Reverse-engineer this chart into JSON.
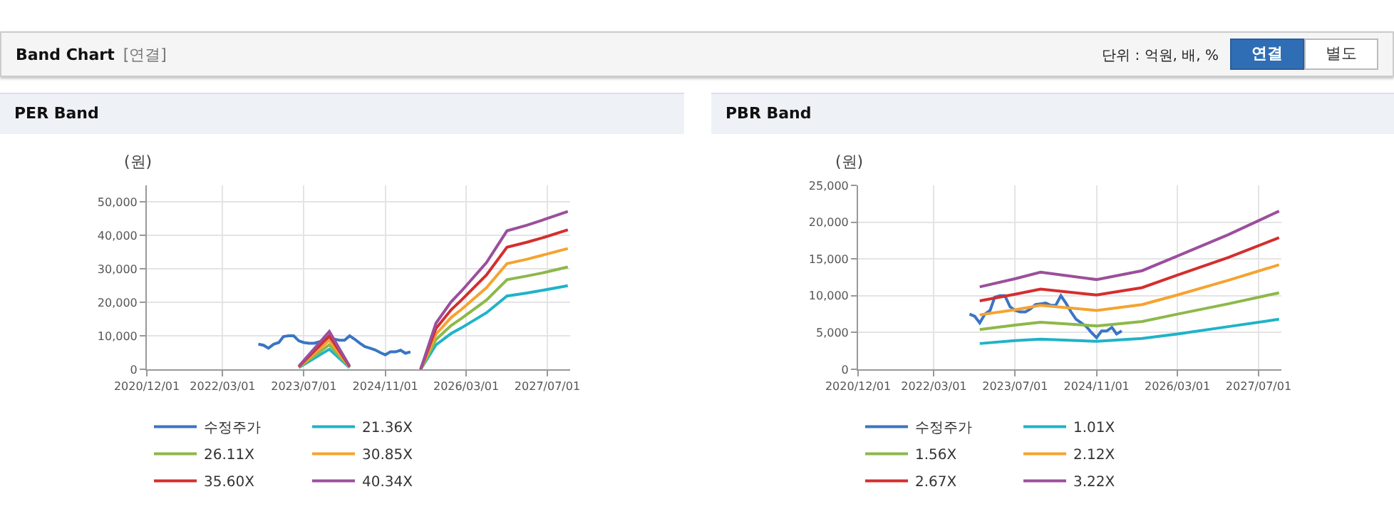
{
  "chart_data": [
    {
      "type": "other",
      "title": "Band Chart",
      "subtitle": "[연결]",
      "annotations": [
        "단위 : 억원, 배, %",
        "연결",
        "별도"
      ]
    },
    {
      "type": "line",
      "title": "PER Band",
      "ylabel": "(원)",
      "grid": true,
      "legend": "bottom",
      "ylim": [
        0,
        55000
      ],
      "yticks": [
        0,
        {
          "value": 10000,
          "label": "10,000"
        },
        {
          "value": 20000,
          "label": "20,000"
        },
        {
          "value": 30000,
          "label": "30,000"
        },
        {
          "value": 40000,
          "label": "40,000"
        },
        {
          "value": 50000,
          "label": "50,000"
        }
      ],
      "xlim": [
        "2020-12-01",
        "2027-11-15"
      ],
      "xticks": [
        {
          "value": "2020-12-01",
          "label": "2020/12/01"
        },
        {
          "value": "2022-03-01",
          "label": "2022/03/01"
        },
        {
          "value": "2023-07-01",
          "label": "2023/07/01"
        },
        {
          "value": "2024-11-01",
          "label": "2024/11/01"
        },
        {
          "value": "2026-03-01",
          "label": "2026/03/01"
        },
        {
          "value": "2027-07-01",
          "label": "2027/07/01"
        }
      ],
      "series": [
        {
          "name": "수정주가",
          "color": "#3a75c4",
          "x": [
            "2022-10",
            "2022-11",
            "2022-12",
            "2023-01",
            "2023-02",
            "2023-03",
            "2023-04",
            "2023-05",
            "2023-06",
            "2023-07",
            "2023-08",
            "2023-09",
            "2023-10",
            "2023-11",
            "2023-12",
            "2024-01",
            "2024-02",
            "2024-03",
            "2024-04",
            "2024-05",
            "2024-06",
            "2024-07",
            "2024-08",
            "2024-09",
            "2024-10",
            "2024-11",
            "2024-12",
            "2025-01",
            "2025-02",
            "2025-03",
            "2025-04"
          ],
          "values": [
            7500,
            7200,
            6300,
            7500,
            8000,
            9800,
            10000,
            10000,
            8500,
            8000,
            7800,
            7800,
            8200,
            8800,
            8900,
            9000,
            8700,
            8700,
            10000,
            9000,
            7800,
            6800,
            6300,
            5800,
            5000,
            4300,
            5200,
            5200,
            5700,
            4800,
            5200
          ]
        },
        {
          "name": "21.36X",
          "color": "#1fb3c8",
          "x": [
            "2023-06",
            "2023-12",
            "2024-04",
            "2024-12",
            "2025-06",
            "2025-09",
            "2025-12",
            "2026-02",
            "2026-07",
            "2026-11",
            "2027-03",
            "2027-06",
            "2027-11"
          ],
          "values": [
            500,
            6000,
            500,
            null,
            0,
            7300,
            10700,
            12400,
            16900,
            21900,
            22800,
            23600,
            25000
          ]
        },
        {
          "name": "26.11X",
          "color": "#8db84a",
          "x": [
            "2023-06",
            "2023-12",
            "2024-04",
            "2024-12",
            "2025-06",
            "2025-09",
            "2025-12",
            "2026-02",
            "2026-07",
            "2026-11",
            "2027-03",
            "2027-06",
            "2027-11"
          ],
          "values": [
            600,
            7300,
            600,
            null,
            0,
            8900,
            13100,
            15200,
            20700,
            26800,
            27900,
            28800,
            30600
          ]
        },
        {
          "name": "30.85X",
          "color": "#f5a330",
          "x": [
            "2023-06",
            "2023-12",
            "2024-04",
            "2024-12",
            "2025-06",
            "2025-09",
            "2025-12",
            "2026-02",
            "2026-07",
            "2026-11",
            "2027-03",
            "2027-06",
            "2027-11"
          ],
          "values": [
            700,
            8700,
            700,
            null,
            0,
            10500,
            15500,
            17900,
            24400,
            31600,
            32900,
            34100,
            36100
          ]
        },
        {
          "name": "35.60X",
          "color": "#d42e2e",
          "x": [
            "2023-06",
            "2023-12",
            "2024-04",
            "2024-12",
            "2025-06",
            "2025-09",
            "2025-12",
            "2026-02",
            "2026-07",
            "2026-11",
            "2027-03",
            "2027-06",
            "2027-11"
          ],
          "values": [
            800,
            10000,
            800,
            null,
            0,
            12200,
            17800,
            20700,
            28200,
            36500,
            38000,
            39300,
            41700
          ]
        },
        {
          "name": "40.34X",
          "color": "#9b4f9b",
          "x": [
            "2023-06",
            "2023-12",
            "2024-04",
            "2024-12",
            "2025-06",
            "2025-09",
            "2025-12",
            "2026-02",
            "2026-07",
            "2026-11",
            "2027-03",
            "2027-06",
            "2027-11"
          ],
          "values": [
            900,
            11300,
            900,
            null,
            0,
            13800,
            20200,
            23400,
            31900,
            41400,
            43100,
            44600,
            47200
          ]
        }
      ]
    },
    {
      "type": "line",
      "title": "PBR Band",
      "ylabel": "(원)",
      "grid": true,
      "legend": "bottom",
      "ylim": [
        0,
        25000
      ],
      "yticks": [
        0,
        {
          "value": 5000,
          "label": "5,000"
        },
        {
          "value": 10000,
          "label": "10,000"
        },
        {
          "value": 15000,
          "label": "15,000"
        },
        {
          "value": 20000,
          "label": "20,000"
        },
        {
          "value": 25000,
          "label": "25,000"
        }
      ],
      "xlim": [
        "2020-12-01",
        "2027-11-15"
      ],
      "xticks": [
        {
          "value": "2020-12-01",
          "label": "2020/12/01"
        },
        {
          "value": "2022-03-01",
          "label": "2022/03/01"
        },
        {
          "value": "2023-07-01",
          "label": "2023/07/01"
        },
        {
          "value": "2024-11-01",
          "label": "2024/11/01"
        },
        {
          "value": "2026-03-01",
          "label": "2026/03/01"
        },
        {
          "value": "2027-07-01",
          "label": "2027/07/01"
        }
      ],
      "series": [
        {
          "name": "수정주가",
          "color": "#3a75c4",
          "x": [
            "2022-10",
            "2022-11",
            "2022-12",
            "2023-01",
            "2023-02",
            "2023-03",
            "2023-04",
            "2023-05",
            "2023-06",
            "2023-07",
            "2023-08",
            "2023-09",
            "2023-10",
            "2023-11",
            "2023-12",
            "2024-01",
            "2024-02",
            "2024-03",
            "2024-04",
            "2024-05",
            "2024-06",
            "2024-07",
            "2024-08",
            "2024-09",
            "2024-10",
            "2024-11",
            "2024-12",
            "2025-01",
            "2025-02",
            "2025-03",
            "2025-04"
          ],
          "values": [
            7500,
            7200,
            6300,
            7500,
            8000,
            9800,
            10000,
            10000,
            8500,
            8000,
            7800,
            7800,
            8200,
            8800,
            8900,
            9000,
            8700,
            8700,
            10000,
            9000,
            7800,
            6800,
            6300,
            5800,
            5000,
            4300,
            5200,
            5200,
            5700,
            4800,
            5200
          ]
        },
        {
          "name": "1.01X",
          "color": "#1fb3c8",
          "x": [
            "2022-12",
            "2023-07",
            "2023-12",
            "2024-11",
            "2025-08",
            "2026-03",
            "2027-01",
            "2027-11"
          ],
          "values": [
            3500,
            3900,
            4100,
            3800,
            4200,
            4800,
            5800,
            6800
          ]
        },
        {
          "name": "1.56X",
          "color": "#8db84a",
          "x": [
            "2022-12",
            "2023-07",
            "2023-12",
            "2024-11",
            "2025-08",
            "2026-03",
            "2027-01",
            "2027-11"
          ],
          "values": [
            5400,
            6000,
            6400,
            5900,
            6500,
            7500,
            8900,
            10400
          ]
        },
        {
          "name": "2.12X",
          "color": "#f5a330",
          "x": [
            "2022-12",
            "2023-07",
            "2023-12",
            "2024-11",
            "2025-08",
            "2026-03",
            "2027-01",
            "2027-11"
          ],
          "values": [
            7400,
            8100,
            8700,
            8000,
            8800,
            10100,
            12100,
            14200
          ]
        },
        {
          "name": "2.67X",
          "color": "#d42e2e",
          "x": [
            "2022-12",
            "2023-07",
            "2023-12",
            "2024-11",
            "2025-08",
            "2026-03",
            "2027-01",
            "2027-11"
          ],
          "values": [
            9300,
            10200,
            10900,
            10100,
            11100,
            12800,
            15200,
            17900
          ]
        },
        {
          "name": "3.22X",
          "color": "#9b4f9b",
          "x": [
            "2022-12",
            "2023-07",
            "2023-12",
            "2024-11",
            "2025-08",
            "2026-03",
            "2027-01",
            "2027-11"
          ],
          "values": [
            11200,
            12300,
            13200,
            12200,
            13400,
            15400,
            18300,
            21500
          ]
        }
      ]
    }
  ]
}
